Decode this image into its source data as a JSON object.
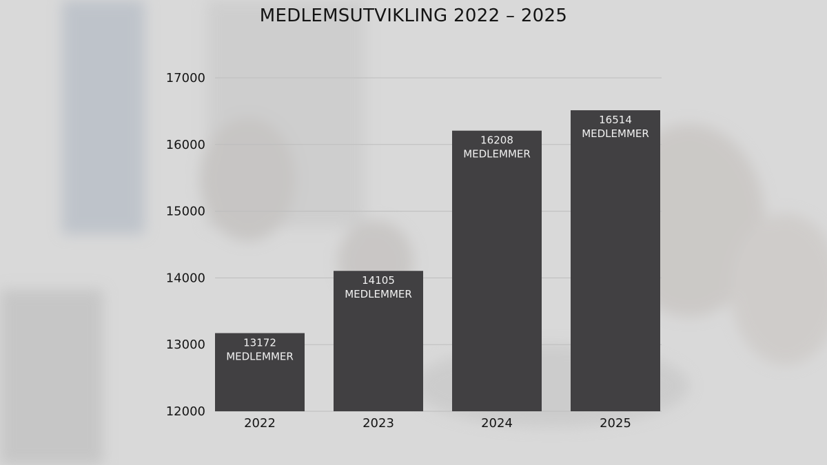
{
  "chart_data": {
    "type": "bar",
    "title": "MEDLEMSUTVIKLING 2022 – 2025",
    "categories": [
      "2022",
      "2023",
      "2024",
      "2025"
    ],
    "values": [
      13172,
      14105,
      16208,
      16514
    ],
    "data_labels": [
      [
        "13172",
        "MEDLEMMER"
      ],
      [
        "14105",
        "MEDLEMMER"
      ],
      [
        "16208",
        "MEDLEMMER"
      ],
      [
        "16514",
        "MEDLEMMER"
      ]
    ],
    "ylim": [
      12000,
      17000
    ],
    "yticks": [
      12000,
      13000,
      14000,
      15000,
      16000,
      17000
    ],
    "grid": true,
    "legend": "none",
    "colors": {
      "bar": "#414042",
      "grid": "#bdbdbd",
      "text": "#141414",
      "bar_label": "#f2f2f2"
    }
  }
}
